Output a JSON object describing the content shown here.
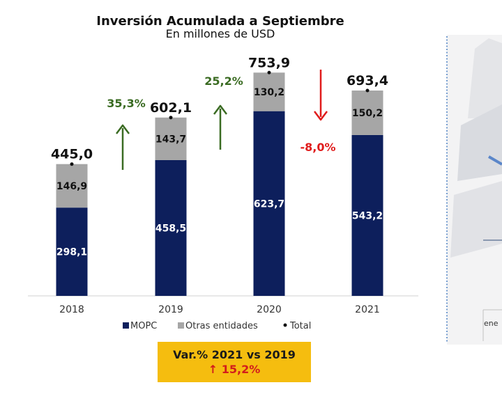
{
  "chart_data": {
    "type": "bar",
    "stacked": true,
    "title": "Inversión Acumulada a Septiembre",
    "subtitle": "En millones de USD",
    "categories": [
      "2018",
      "2019",
      "2020",
      "2021"
    ],
    "series": [
      {
        "name": "MOPC",
        "values": [
          298.1,
          458.5,
          623.7,
          543.2
        ],
        "labels": [
          "298,1",
          "458,5",
          "623,7",
          "543,2"
        ],
        "color": "#0d1f5c"
      },
      {
        "name": "Otras entidades",
        "values": [
          146.9,
          143.7,
          130.2,
          150.2
        ],
        "labels": [
          "146,9",
          "143,7",
          "130,2",
          "150,2"
        ],
        "color": "#a6a6a6"
      }
    ],
    "totals": {
      "name": "Total",
      "values": [
        445.0,
        602.1,
        753.9,
        693.4
      ],
      "labels": [
        "445,0",
        "602,1",
        "753,9",
        "693,4"
      ]
    },
    "growth": [
      {
        "label": "35,3%",
        "direction": "up",
        "color": "#3a6b22"
      },
      {
        "label": "25,2%",
        "direction": "up",
        "color": "#3a6b22"
      },
      {
        "label": "-8,0%",
        "direction": "down",
        "color": "#e01b1b"
      }
    ],
    "legend_position": "bottom",
    "grid": false,
    "ylim": [
      0,
      850
    ]
  },
  "callout": {
    "line1": "Var.% 2021 vs 2019",
    "line2": "↑ 15,2%"
  },
  "side_panel": {
    "axis_label": "ene"
  },
  "colors": {
    "mopc": "#0d1f5c",
    "otras": "#a6a6a6",
    "up_arrow": "#3a6b22",
    "down_arrow": "#e01b1b",
    "callout_bg": "#f5bd0f"
  }
}
